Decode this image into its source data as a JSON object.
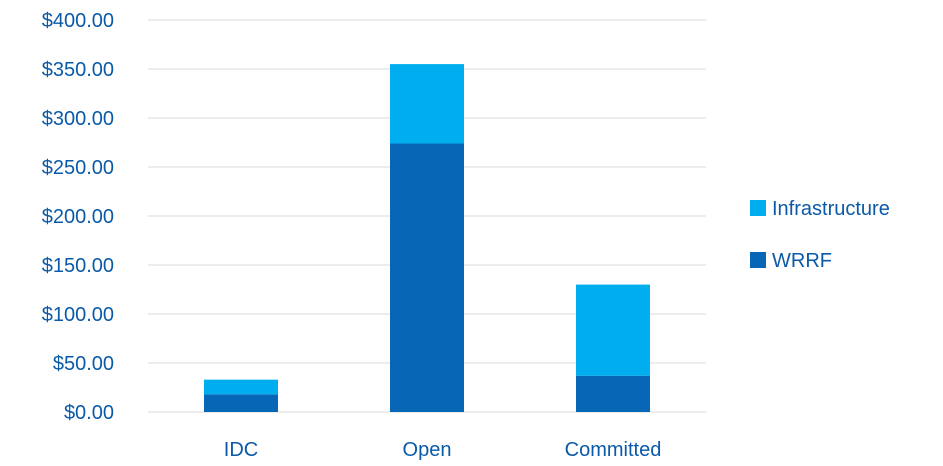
{
  "chart_data": {
    "type": "bar",
    "stacked": true,
    "title": "",
    "xlabel": "",
    "ylabel": "",
    "categories": [
      "IDC",
      "Open",
      "Committed"
    ],
    "series": [
      {
        "name": "WRRF",
        "color": "#0866b6",
        "values": [
          18,
          274,
          37
        ]
      },
      {
        "name": "Infrastructure",
        "color": "#00aeef",
        "values": [
          15,
          81,
          93
        ]
      }
    ],
    "ylim": [
      0,
      400
    ],
    "y_ticks": [
      0,
      50,
      100,
      150,
      200,
      250,
      300,
      350,
      400
    ],
    "y_tick_labels": [
      "$0.00",
      "$50.00",
      "$100.00",
      "$150.00",
      "$200.00",
      "$250.00",
      "$300.00",
      "$350.00",
      "$400.00"
    ],
    "grid": true,
    "legend_position": "right",
    "legend_order": [
      "Infrastructure",
      "WRRF"
    ]
  }
}
